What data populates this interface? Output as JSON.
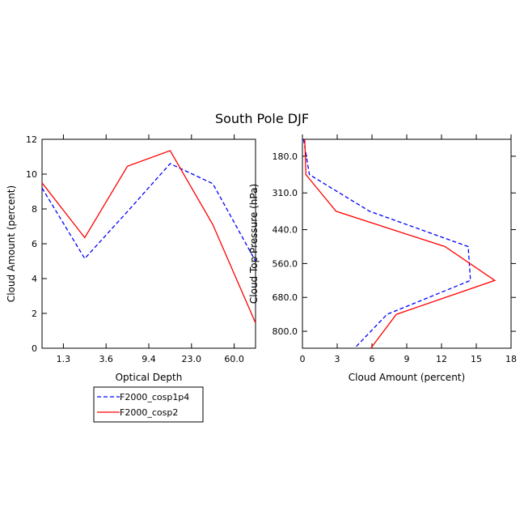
{
  "title": "South Pole DJF",
  "colors": {
    "F2000_cosp1p4": "#0000ff",
    "F2000_cosp2": "#ff0000"
  },
  "legend": {
    "placement": "bottom-left below left panel",
    "entries": [
      {
        "label": "F2000_cosp1p4",
        "color": "#0000ff",
        "style": "dashed"
      },
      {
        "label": "F2000_cosp2",
        "color": "#ff0000",
        "style": "solid"
      }
    ]
  },
  "chart_data": [
    {
      "type": "line",
      "xlabel": "Optical Depth",
      "ylabel": "Cloud Amount (percent)",
      "x": [
        0.5,
        1.5,
        2.5,
        3.5,
        4.5,
        5.5
      ],
      "xlim": [
        0.5,
        5.5
      ],
      "xticks": [
        1,
        2,
        3,
        4,
        5
      ],
      "xtick_labels": [
        "1.3",
        "3.6",
        "9.4",
        "23.0",
        "60.0"
      ],
      "ylim": [
        0,
        12
      ],
      "yticks": [
        0,
        2,
        4,
        6,
        8,
        10,
        12
      ],
      "grid": false,
      "series": [
        {
          "name": "F2000_cosp1p4",
          "color": "#0000ff",
          "style": "dashed",
          "values": [
            9.2,
            5.15,
            7.85,
            10.6,
            9.45,
            5.0
          ]
        },
        {
          "name": "F2000_cosp2",
          "color": "#ff0000",
          "style": "solid",
          "values": [
            9.5,
            6.35,
            10.45,
            11.35,
            7.1,
            1.45
          ]
        }
      ]
    },
    {
      "type": "line",
      "orientation": "vertical",
      "xlabel": "Cloud Amount (percent)",
      "ylabel": "Cloud Top Pressure (hPa)",
      "xlim": [
        0,
        18
      ],
      "xticks": [
        0,
        3,
        6,
        9,
        12,
        15,
        18
      ],
      "ylim": [
        120,
        860
      ],
      "y_inverted": true,
      "yticks": [
        180,
        310,
        440,
        560,
        680,
        800
      ],
      "ytick_labels": [
        "180.0",
        "310.0",
        "440.0",
        "560.0",
        "680.0",
        "800.0"
      ],
      "grid": false,
      "y": [
        120,
        245,
        375,
        500,
        620,
        740,
        860
      ],
      "series": [
        {
          "name": "F2000_cosp1p4",
          "color": "#0000ff",
          "style": "dashed",
          "values": [
            0.1,
            0.6,
            5.8,
            14.3,
            14.5,
            7.3,
            4.5
          ]
        },
        {
          "name": "F2000_cosp2",
          "color": "#ff0000",
          "style": "solid",
          "values": [
            0.2,
            0.3,
            2.9,
            12.3,
            16.6,
            8.1,
            5.9
          ]
        }
      ]
    }
  ]
}
